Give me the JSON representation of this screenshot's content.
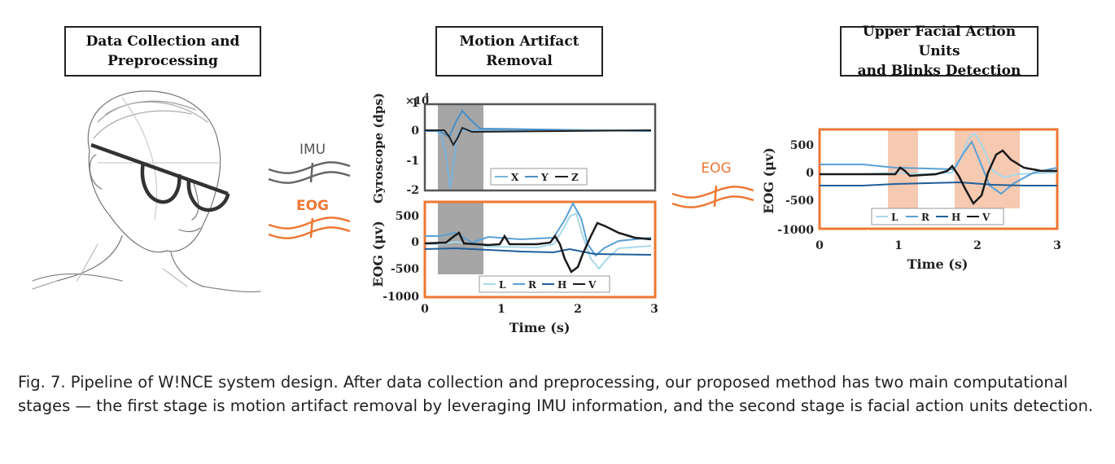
{
  "stages": [
    {
      "title_line1": "Data Collection and",
      "title_line2": "Preprocessing"
    },
    {
      "title_line1": "Motion Artifact",
      "title_line2": "Removal"
    },
    {
      "title_line1": "Upper Facial Action Units",
      "title_line2": "and Blinks Detection"
    }
  ],
  "signals": {
    "imu": "IMU",
    "eog": "EOG",
    "eog_out": "EOG"
  },
  "plots": {
    "gyro": {
      "ylabel": "Gyroscope (dps)",
      "multiplier": "×10",
      "multiplier_exp": "4",
      "yticks": [
        "1",
        "0",
        "-1",
        "-2"
      ],
      "legend": [
        "X",
        "Y",
        "Z"
      ]
    },
    "eog_mid": {
      "ylabel": "EOG (μv)",
      "yticks": [
        "500",
        "0",
        "-500",
        "-1000"
      ],
      "xticks": [
        "0",
        "1",
        "2",
        "3"
      ],
      "xlabel": "Time (s)",
      "legend": [
        "L",
        "R",
        "H",
        "V"
      ]
    },
    "eog_right": {
      "ylabel": "EOG (μv)",
      "yticks": [
        "500",
        "0",
        "-500",
        "-1000"
      ],
      "xticks": [
        "0",
        "1",
        "2",
        "3"
      ],
      "xlabel": "Time (s)",
      "legend": [
        "L",
        "R",
        "H",
        "V"
      ]
    }
  },
  "colors": {
    "orange": "#ee7733",
    "gray_box": "#555555",
    "shade_gray": "#a6a6a6",
    "shade_orange": "#f6c9b1",
    "L": "#a8d8ea",
    "R": "#5aa0d4",
    "H": "#1f5f9a",
    "V": "#1a1a1a"
  },
  "caption": "Fig. 7.  Pipeline of W!NCE system design. After data collection and preprocessing, our proposed method has two main computational stages — the first stage is motion artifact removal by leveraging IMU information, and the second stage is facial action units detection."
}
